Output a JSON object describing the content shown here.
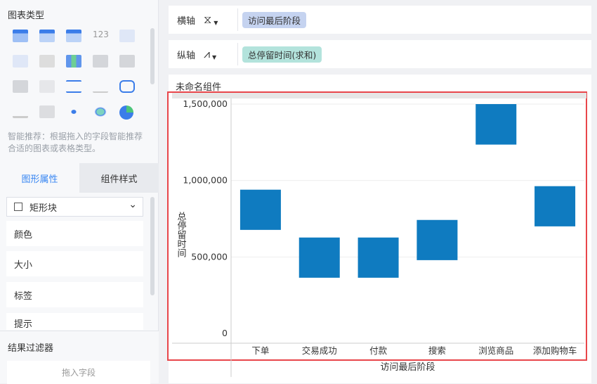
{
  "left": {
    "chart_type_title": "图表类型",
    "hint": "智能推荐：根据拖入的字段智能推荐合适的图表或表格类型。",
    "tabs": [
      {
        "label": "图形属性",
        "active": true
      },
      {
        "label": "组件样式",
        "active": false
      }
    ],
    "shape_select": "矩形块",
    "props": [
      "颜色",
      "大小",
      "标签",
      "提示"
    ],
    "filter_title": "结果过滤器",
    "filter_drop": "拖入字段"
  },
  "axes": {
    "x": {
      "label": "横轴",
      "field": "访问最后阶段",
      "color": "#c5d3f0"
    },
    "y": {
      "label": "纵轴",
      "field": "总停留时间(求和)",
      "color": "#b3e3dc"
    }
  },
  "component_title": "未命名组件",
  "chart_data": {
    "type": "range-bar",
    "xlabel": "访问最后阶段",
    "ylabel": "总停留时间",
    "categories": [
      "下单",
      "交易成功",
      "付款",
      "搜索",
      "浏览商品",
      "添加购物车"
    ],
    "ranges": [
      [
        677000,
        940000
      ],
      [
        364000,
        627000
      ],
      [
        364000,
        627000
      ],
      [
        479000,
        742000
      ],
      [
        1235000,
        1500000
      ],
      [
        700000,
        963000
      ]
    ],
    "yticks": [
      "0",
      "500,000",
      "1,000,000",
      "1,500,000"
    ],
    "ytick_values": [
      0,
      500000,
      1000000,
      1500000
    ],
    "ylim": [
      0,
      1500000
    ],
    "color": "#0f7bc0",
    "grid": true
  }
}
